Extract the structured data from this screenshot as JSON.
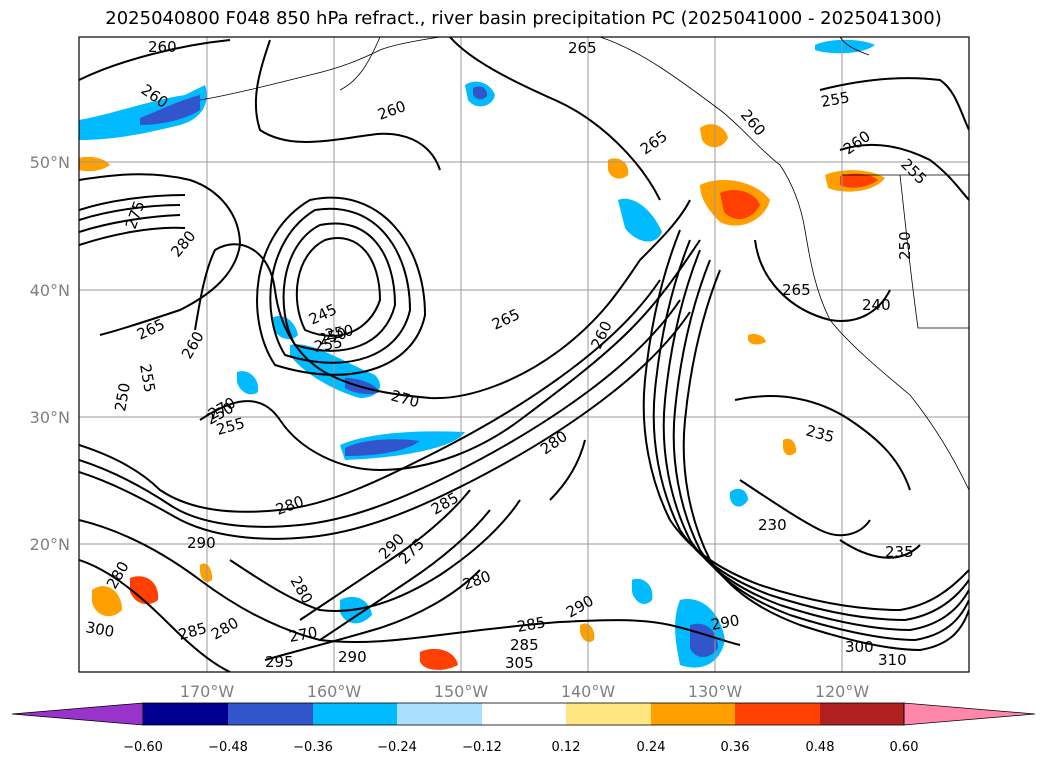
{
  "title": "2025040800 F048 850 hPa refract., river basin precipitation PC (2025041000 - 2025041300)",
  "lat_labels": [
    "50°N",
    "40°N",
    "30°N",
    "20°N"
  ],
  "lon_labels": [
    "170°W",
    "160°W",
    "150°W",
    "140°W",
    "130°W",
    "120°W"
  ],
  "contour_labels": [
    "260",
    "260",
    "260",
    "265",
    "265",
    "260",
    "255",
    "260",
    "255",
    "270",
    "250",
    "275",
    "280",
    "245",
    "250",
    "255",
    "265",
    "260",
    "250",
    "255",
    "270",
    "255",
    "250",
    "265",
    "280",
    "260",
    "280",
    "285",
    "290",
    "275",
    "290",
    "280",
    "280",
    "285",
    "290",
    "300",
    "310",
    "230",
    "235",
    "235",
    "240",
    "250",
    "265",
    "290",
    "285",
    "280",
    "270",
    "295",
    "290",
    "285",
    "305",
    "300",
    "280"
  ],
  "colorbar": {
    "colors": [
      "#9933cc",
      "#000090",
      "#3355cc",
      "#00bbff",
      "#aae0ff",
      "#ffffff",
      "#ffe680",
      "#ffa000",
      "#ff4000",
      "#b02020",
      "#ff88aa"
    ],
    "ticks": [
      "−0.60",
      "−0.48",
      "−0.36",
      "−0.24",
      "−0.12",
      "0.12",
      "0.24",
      "0.36",
      "0.48",
      "0.60"
    ]
  }
}
